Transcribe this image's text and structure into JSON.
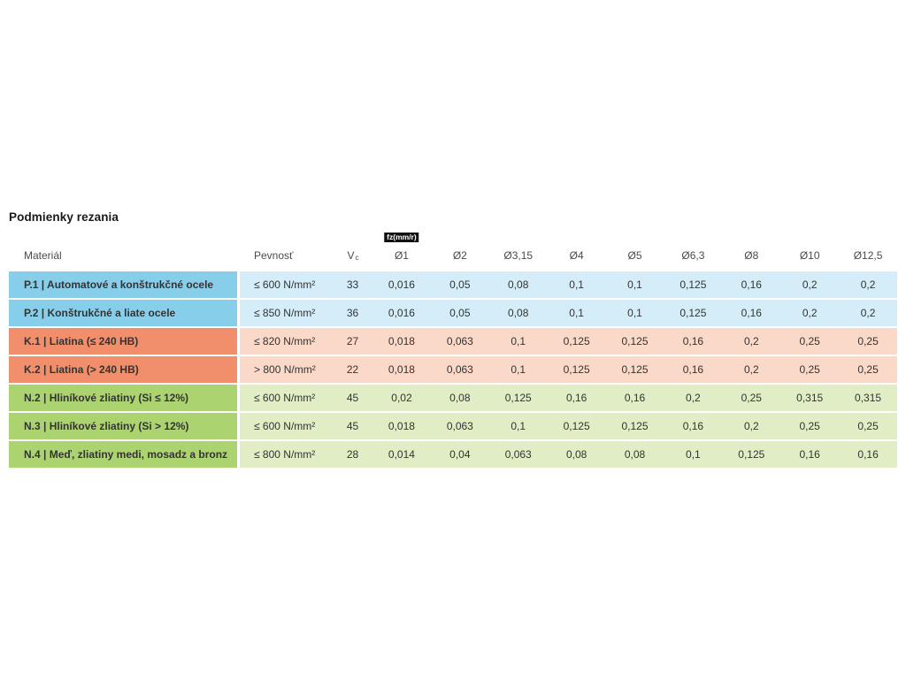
{
  "page": {
    "title": "Podmienky rezania"
  },
  "colors": {
    "steel_dark": "#87CEEA",
    "steel_light": "#D5EDF8",
    "cast_iron_dark": "#F18E6B",
    "cast_iron_light": "#FAD9C8",
    "nonferrous_dark": "#ABD471",
    "nonferrous_light": "#E0EDC5",
    "badge_bg": "#111111",
    "badge_text": "#FFFFFF"
  },
  "table": {
    "header": {
      "material": "Materiál",
      "strength": "Pevnosť",
      "vc_main": "V",
      "vc_sub": "c",
      "fz_badge": "fz(mm/r)",
      "diameters": [
        "Ø1",
        "Ø2",
        "Ø3,15",
        "Ø4",
        "Ø5",
        "Ø6,3",
        "Ø8",
        "Ø10",
        "Ø12,5"
      ]
    },
    "rows": [
      {
        "group": "p",
        "material": "P.1 | Automatové a konštrukčné ocele",
        "strength": "≤ 600 N/mm²",
        "vc": "33",
        "values": [
          "0,016",
          "0,05",
          "0,08",
          "0,1",
          "0,1",
          "0,125",
          "0,16",
          "0,2",
          "0,2"
        ]
      },
      {
        "group": "p",
        "material": "P.2 | Konštrukčné a liate ocele",
        "strength": "≤ 850 N/mm²",
        "vc": "36",
        "values": [
          "0,016",
          "0,05",
          "0,08",
          "0,1",
          "0,1",
          "0,125",
          "0,16",
          "0,2",
          "0,2"
        ]
      },
      {
        "group": "k",
        "material": "K.1 | Liatina (≤ 240 HB)",
        "strength": "≤ 820 N/mm²",
        "vc": "27",
        "values": [
          "0,018",
          "0,063",
          "0,1",
          "0,125",
          "0,125",
          "0,16",
          "0,2",
          "0,25",
          "0,25"
        ]
      },
      {
        "group": "k",
        "material": "K.2 | Liatina (> 240 HB)",
        "strength": "> 800 N/mm²",
        "vc": "22",
        "values": [
          "0,018",
          "0,063",
          "0,1",
          "0,125",
          "0,125",
          "0,16",
          "0,2",
          "0,25",
          "0,25"
        ]
      },
      {
        "group": "n",
        "material": "N.2 | Hliníkové zliatiny (Si ≤ 12%)",
        "strength": "≤ 600 N/mm²",
        "vc": "45",
        "values": [
          "0,02",
          "0,08",
          "0,125",
          "0,16",
          "0,16",
          "0,2",
          "0,25",
          "0,315",
          "0,315"
        ]
      },
      {
        "group": "n",
        "material": "N.3 | Hliníkové zliatiny (Si > 12%)",
        "strength": "≤ 600 N/mm²",
        "vc": "45",
        "values": [
          "0,018",
          "0,063",
          "0,1",
          "0,125",
          "0,125",
          "0,16",
          "0,2",
          "0,25",
          "0,25"
        ]
      },
      {
        "group": "n",
        "material": "N.4 | Meď, zliatiny medi, mosadz a bronz",
        "strength": "≤ 800 N/mm²",
        "vc": "28",
        "values": [
          "0,014",
          "0,04",
          "0,063",
          "0,08",
          "0,08",
          "0,1",
          "0,125",
          "0,16",
          "0,16"
        ]
      }
    ]
  }
}
